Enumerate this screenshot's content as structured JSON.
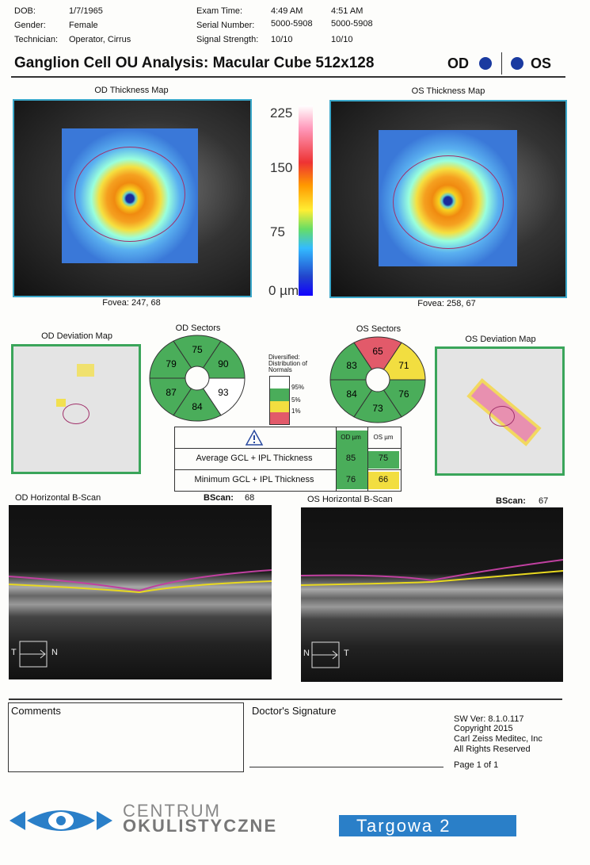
{
  "header": {
    "dob_label": "DOB:",
    "dob": "1/7/1965",
    "gender_label": "Gender:",
    "gender": "Female",
    "technician_label": "Technician:",
    "technician": "Operator, Cirrus",
    "exam_time_label": "Exam Time:",
    "exam_time_od": "4:49 AM",
    "exam_time_os": "4:51 AM",
    "serial_label": "Serial Number:",
    "serial_od": "5000-5908",
    "serial_os": "5000-5908",
    "signal_label": "Signal Strength:",
    "signal_od": "10/10",
    "signal_os": "10/10"
  },
  "title": {
    "text": "Ganglion Cell OU Analysis: Macular Cube 512x128",
    "od": "OD",
    "os": "OS"
  },
  "thickness": {
    "od_title": "OD Thickness Map",
    "os_title": "OS Thickness Map",
    "od_fovea": "Fovea: 247, 68",
    "os_fovea": "Fovea: 258, 67",
    "scale": [
      "225",
      "150",
      "75",
      "0 µm"
    ]
  },
  "deviation": {
    "od_title": "OD Deviation Map",
    "os_title": "OS Deviation Map"
  },
  "sectors": {
    "od_title": "OD Sectors",
    "od_values": [
      75,
      90,
      93,
      84,
      87,
      79
    ],
    "os_title": "OS Sectors",
    "os_values": [
      65,
      71,
      76,
      73,
      84,
      83
    ]
  },
  "legend": {
    "title": "Diversified: Distribution of Normals",
    "levels": [
      "95%",
      "5%",
      "1%"
    ]
  },
  "table": {
    "headers": [
      "OD µm",
      "OS µm"
    ],
    "rows": [
      [
        "Average GCL + IPL Thickness",
        85,
        75
      ],
      [
        "Minimum GCL + IPL Thickness",
        76,
        66
      ]
    ]
  },
  "bscan": {
    "od_title": "OD Horizontal B-Scan",
    "os_title": "OS Horizontal B-Scan",
    "label": "BScan:",
    "od_value": "68",
    "os_value": "67",
    "t": "T",
    "n": "N"
  },
  "footer": {
    "comments": "Comments",
    "signature": "Doctor's Signature",
    "sw": [
      "SW Ver: 8.1.0.117",
      "Copyright 2015",
      "Carl Zeiss Meditec, Inc",
      "All Rights Reserved",
      "Page 1 of 1"
    ]
  },
  "logo": {
    "line1": "CENTRUM",
    "line2": "OKULISTYCZNE",
    "address": "Targowa 2"
  }
}
